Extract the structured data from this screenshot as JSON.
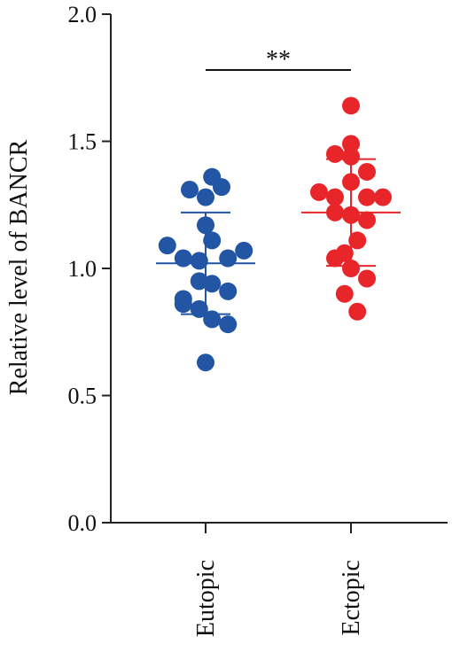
{
  "chart_data": {
    "type": "scatter",
    "ylabel": "Relative level of BANCR",
    "ylim": [
      0,
      2
    ],
    "yticks": [
      "0.0",
      "0.5",
      "1.0",
      "1.5",
      "2.0"
    ],
    "categories": [
      "Eutopic",
      "Ectopic"
    ],
    "significance": "**",
    "series": [
      {
        "category": "Eutopic",
        "color": "#2255a4",
        "mean": 1.02,
        "sd_low": 0.82,
        "sd_high": 1.22,
        "points": [
          {
            "jitter": 0.1,
            "y": 1.36
          },
          {
            "jitter": -0.25,
            "y": 1.31
          },
          {
            "jitter": 0.25,
            "y": 1.32
          },
          {
            "jitter": 0.0,
            "y": 1.28
          },
          {
            "jitter": 0.0,
            "y": 1.17
          },
          {
            "jitter": 0.1,
            "y": 1.11
          },
          {
            "jitter": -0.6,
            "y": 1.09
          },
          {
            "jitter": 0.6,
            "y": 1.07
          },
          {
            "jitter": -0.35,
            "y": 1.04
          },
          {
            "jitter": -0.1,
            "y": 1.03
          },
          {
            "jitter": 0.35,
            "y": 1.04
          },
          {
            "jitter": -0.1,
            "y": 0.95
          },
          {
            "jitter": 0.1,
            "y": 0.94
          },
          {
            "jitter": 0.35,
            "y": 0.91
          },
          {
            "jitter": -0.35,
            "y": 0.88
          },
          {
            "jitter": -0.35,
            "y": 0.86
          },
          {
            "jitter": -0.1,
            "y": 0.84
          },
          {
            "jitter": 0.1,
            "y": 0.8
          },
          {
            "jitter": 0.35,
            "y": 0.78
          },
          {
            "jitter": 0.0,
            "y": 0.63
          }
        ]
      },
      {
        "category": "Ectopic",
        "color": "#e8262a",
        "mean": 1.22,
        "sd_low": 1.01,
        "sd_high": 1.43,
        "points": [
          {
            "jitter": 0.0,
            "y": 1.64
          },
          {
            "jitter": 0.0,
            "y": 1.49
          },
          {
            "jitter": -0.25,
            "y": 1.45
          },
          {
            "jitter": 0.0,
            "y": 1.44
          },
          {
            "jitter": 0.25,
            "y": 1.38
          },
          {
            "jitter": 0.0,
            "y": 1.34
          },
          {
            "jitter": -0.5,
            "y": 1.3
          },
          {
            "jitter": -0.25,
            "y": 1.28
          },
          {
            "jitter": 0.25,
            "y": 1.28
          },
          {
            "jitter": 0.5,
            "y": 1.28
          },
          {
            "jitter": -0.25,
            "y": 1.22
          },
          {
            "jitter": 0.0,
            "y": 1.21
          },
          {
            "jitter": 0.25,
            "y": 1.19
          },
          {
            "jitter": 0.1,
            "y": 1.11
          },
          {
            "jitter": -0.1,
            "y": 1.06
          },
          {
            "jitter": -0.25,
            "y": 1.04
          },
          {
            "jitter": 0.0,
            "y": 1.0
          },
          {
            "jitter": 0.25,
            "y": 0.96
          },
          {
            "jitter": -0.1,
            "y": 0.9
          },
          {
            "jitter": 0.1,
            "y": 0.83
          }
        ]
      }
    ]
  }
}
